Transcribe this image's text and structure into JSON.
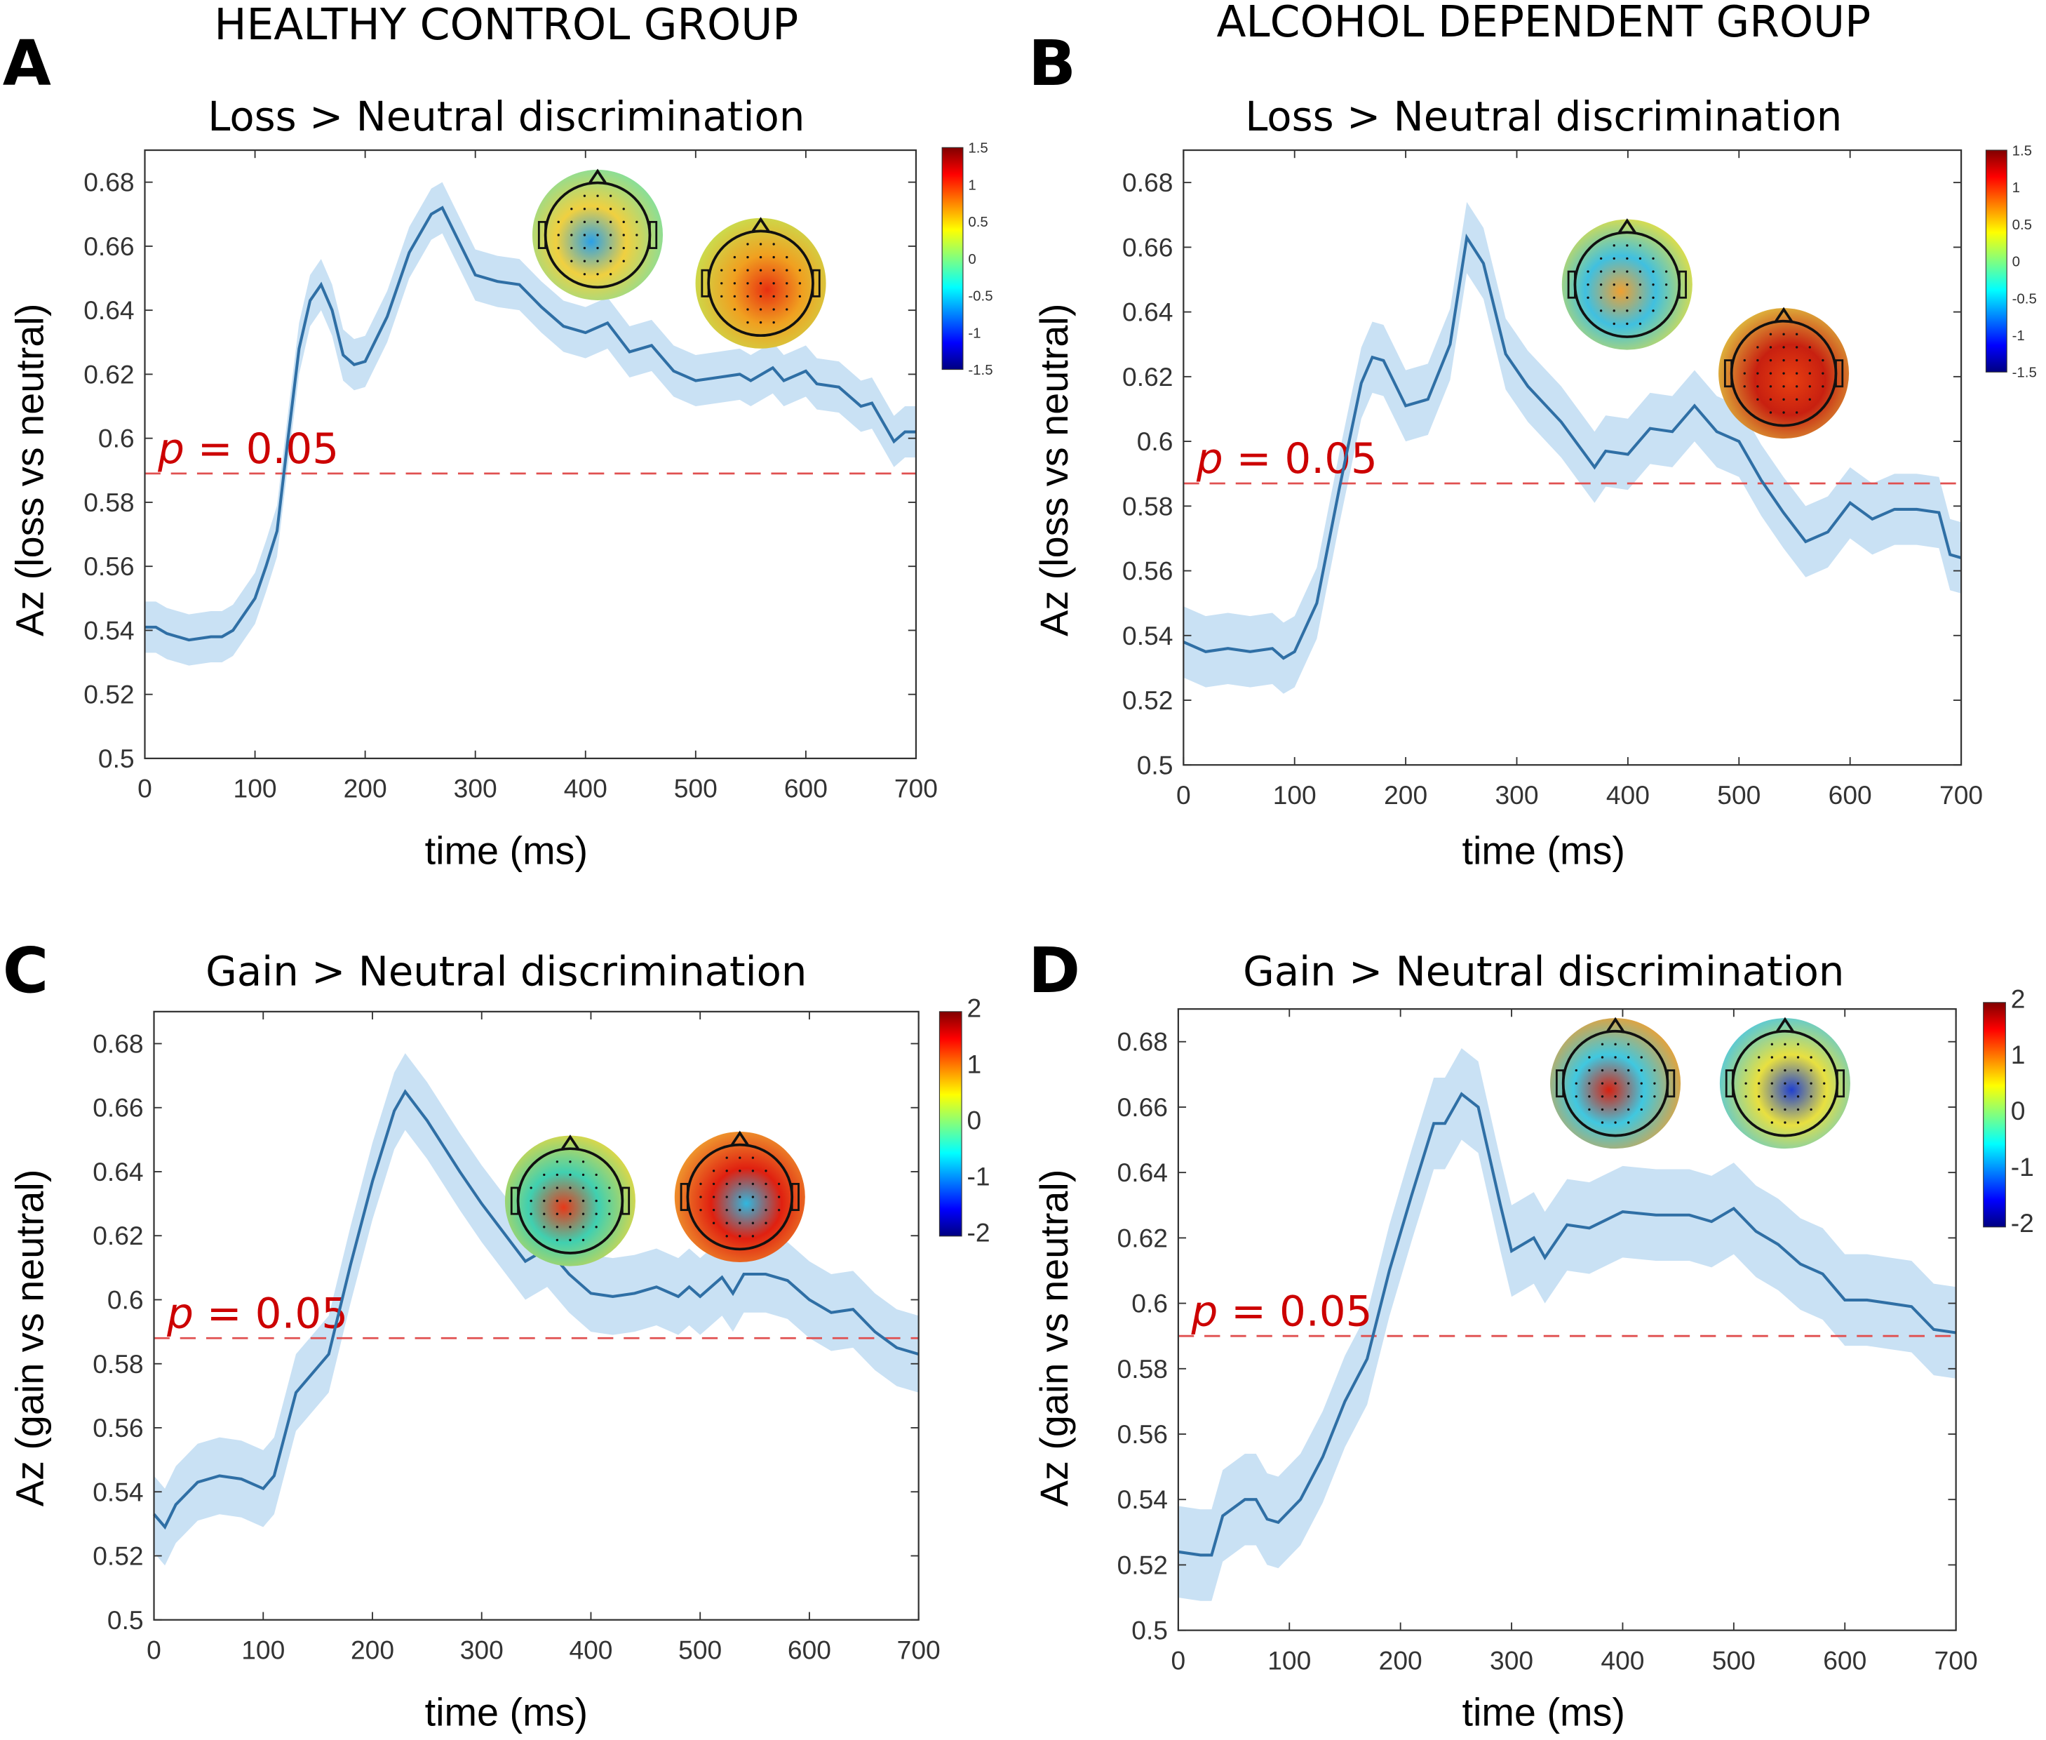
{
  "headers": {
    "left": "HEALTHY CONTROL GROUP",
    "right": "ALCOHOL DEPENDENT GROUP"
  },
  "colors": {
    "line": "#2f6fa5",
    "band": "#c9e1f4",
    "threshold": "#e05050",
    "p_label": "#cc0000"
  },
  "chart_data": [
    {
      "type": "line",
      "panel": "A",
      "title": "Loss > Neutral discrimination",
      "xlabel": "time (ms)",
      "ylabel": "Az (loss vs neutral)",
      "xlim": [
        0,
        700
      ],
      "ylim": [
        0.5,
        0.69
      ],
      "xticks": [
        "0",
        "100",
        "200",
        "300",
        "400",
        "500",
        "600",
        "700"
      ],
      "yticks": [
        "0.5",
        "0.52",
        "0.54",
        "0.56",
        "0.58",
        "0.6",
        "0.62",
        "0.64",
        "0.66",
        "0.68"
      ],
      "threshold": {
        "value": 0.589,
        "label_p": "p",
        "label_rest": " = 0.05"
      },
      "colorbar": {
        "ticks": [
          "1.5",
          "1",
          "0.5",
          "0",
          "-0.5",
          "-1",
          "-1.5"
        ]
      },
      "topomaps": [
        {
          "base": "#7fe0a0",
          "spot": "#2aa0e8",
          "spot2": "#f0d040"
        },
        {
          "base": "#c8e050",
          "spot": "#e83010",
          "spot2": "#f0a020"
        }
      ],
      "x": [
        0,
        10,
        20,
        40,
        60,
        70,
        80,
        100,
        110,
        120,
        130,
        140,
        150,
        160,
        170,
        180,
        190,
        200,
        220,
        240,
        260,
        270,
        280,
        300,
        320,
        340,
        360,
        380,
        400,
        420,
        440,
        460,
        480,
        500,
        520,
        540,
        550,
        570,
        580,
        600,
        610,
        630,
        650,
        660,
        680,
        690,
        700
      ],
      "y": [
        0.541,
        0.541,
        0.539,
        0.537,
        0.538,
        0.538,
        0.54,
        0.55,
        0.56,
        0.571,
        0.6,
        0.628,
        0.643,
        0.648,
        0.64,
        0.626,
        0.623,
        0.624,
        0.638,
        0.658,
        0.67,
        0.672,
        0.665,
        0.651,
        0.649,
        0.648,
        0.641,
        0.635,
        0.633,
        0.636,
        0.627,
        0.629,
        0.621,
        0.618,
        0.619,
        0.62,
        0.618,
        0.622,
        0.618,
        0.621,
        0.617,
        0.616,
        0.61,
        0.611,
        0.599,
        0.602,
        0.602
      ],
      "ci_halfwidth": 0.008
    },
    {
      "type": "line",
      "panel": "B",
      "title": "Loss > Neutral discrimination",
      "xlabel": "time (ms)",
      "ylabel": "Az (loss vs neutral)",
      "xlim": [
        0,
        700
      ],
      "ylim": [
        0.5,
        0.69
      ],
      "xticks": [
        "0",
        "100",
        "200",
        "300",
        "400",
        "500",
        "600",
        "700"
      ],
      "yticks": [
        "0.5",
        "0.52",
        "0.54",
        "0.56",
        "0.58",
        "0.6",
        "0.62",
        "0.64",
        "0.66",
        "0.68"
      ],
      "threshold": {
        "value": 0.587,
        "label_p": "p",
        "label_rest": " = 0.05"
      },
      "colorbar": {
        "ticks": [
          "1.5",
          "1",
          "0.5",
          "0",
          "-0.5",
          "-1",
          "-1.5"
        ]
      },
      "topomaps": [
        {
          "base": "#e8e040",
          "spot": "#f0a030",
          "spot2": "#40c0e0"
        },
        {
          "base": "#e0c040",
          "spot": "#e84010",
          "spot2": "#c82010"
        }
      ],
      "x": [
        0,
        20,
        40,
        60,
        80,
        90,
        100,
        120,
        140,
        160,
        170,
        180,
        200,
        220,
        240,
        255,
        270,
        290,
        310,
        340,
        370,
        380,
        400,
        420,
        440,
        460,
        480,
        500,
        520,
        540,
        560,
        580,
        600,
        620,
        640,
        660,
        680,
        690,
        700
      ],
      "y": [
        0.538,
        0.535,
        0.536,
        0.535,
        0.536,
        0.533,
        0.535,
        0.55,
        0.585,
        0.618,
        0.626,
        0.625,
        0.611,
        0.613,
        0.63,
        0.663,
        0.655,
        0.627,
        0.617,
        0.606,
        0.592,
        0.597,
        0.596,
        0.604,
        0.603,
        0.611,
        0.603,
        0.6,
        0.588,
        0.578,
        0.569,
        0.572,
        0.581,
        0.576,
        0.579,
        0.579,
        0.578,
        0.565,
        0.564
      ],
      "ci_halfwidth": 0.011
    },
    {
      "type": "line",
      "panel": "C",
      "title": "Gain > Neutral discrimination",
      "xlabel": "time (ms)",
      "ylabel": "Az (gain vs neutral)",
      "xlim": [
        0,
        700
      ],
      "ylim": [
        0.5,
        0.69
      ],
      "xticks": [
        "0",
        "100",
        "200",
        "300",
        "400",
        "500",
        "600",
        "700"
      ],
      "yticks": [
        "0.5",
        "0.52",
        "0.54",
        "0.56",
        "0.58",
        "0.6",
        "0.62",
        "0.64",
        "0.66",
        "0.68"
      ],
      "threshold": {
        "value": 0.588,
        "label_p": "p",
        "label_rest": " = 0.05"
      },
      "colorbar": {
        "ticks": [
          "2",
          "1",
          "0",
          "-1",
          "-2"
        ]
      },
      "topomaps": [
        {
          "base": "#e8d840",
          "spot": "#e83818",
          "spot2": "#40d0b0"
        },
        {
          "base": "#f0a030",
          "spot": "#30b8e0",
          "spot2": "#e02010"
        }
      ],
      "x": [
        0,
        10,
        20,
        40,
        60,
        80,
        100,
        110,
        130,
        160,
        180,
        200,
        220,
        230,
        250,
        280,
        300,
        320,
        340,
        360,
        380,
        400,
        420,
        440,
        460,
        480,
        490,
        500,
        520,
        530,
        540,
        560,
        580,
        600,
        620,
        640,
        660,
        680,
        700
      ],
      "y": [
        0.533,
        0.529,
        0.536,
        0.543,
        0.545,
        0.544,
        0.541,
        0.545,
        0.571,
        0.583,
        0.611,
        0.637,
        0.659,
        0.665,
        0.656,
        0.64,
        0.63,
        0.621,
        0.612,
        0.616,
        0.608,
        0.602,
        0.601,
        0.602,
        0.604,
        0.601,
        0.604,
        0.601,
        0.607,
        0.602,
        0.608,
        0.608,
        0.606,
        0.6,
        0.596,
        0.597,
        0.59,
        0.585,
        0.583
      ],
      "ci_halfwidth": 0.012
    },
    {
      "type": "line",
      "panel": "D",
      "title": "Gain > Neutral discrimination",
      "xlabel": "time (ms)",
      "ylabel": "Az (gain vs neutral)",
      "xlim": [
        0,
        700
      ],
      "ylim": [
        0.5,
        0.69
      ],
      "xticks": [
        "0",
        "100",
        "200",
        "300",
        "400",
        "500",
        "600",
        "700"
      ],
      "yticks": [
        "0.5",
        "0.52",
        "0.54",
        "0.56",
        "0.58",
        "0.6",
        "0.62",
        "0.64",
        "0.66",
        "0.68"
      ],
      "threshold": {
        "value": 0.59,
        "label_p": "p",
        "label_rest": " = 0.05"
      },
      "colorbar": {
        "ticks": [
          "2",
          "1",
          "0",
          "-1",
          "-2"
        ]
      },
      "topomaps": [
        {
          "base": "#f0a030",
          "spot": "#d82010",
          "spot2": "#40c8e0"
        },
        {
          "base": "#50c8e0",
          "spot": "#2040d0",
          "spot2": "#e8e040"
        }
      ],
      "x": [
        0,
        20,
        30,
        40,
        60,
        70,
        80,
        90,
        110,
        130,
        150,
        170,
        190,
        210,
        230,
        240,
        255,
        270,
        290,
        300,
        320,
        330,
        350,
        370,
        400,
        430,
        460,
        480,
        500,
        520,
        540,
        560,
        580,
        600,
        620,
        640,
        660,
        680,
        700
      ],
      "y": [
        0.524,
        0.523,
        0.523,
        0.535,
        0.54,
        0.54,
        0.534,
        0.533,
        0.54,
        0.553,
        0.57,
        0.583,
        0.61,
        0.633,
        0.655,
        0.655,
        0.664,
        0.66,
        0.63,
        0.616,
        0.62,
        0.614,
        0.624,
        0.623,
        0.628,
        0.627,
        0.627,
        0.625,
        0.629,
        0.622,
        0.618,
        0.612,
        0.609,
        0.601,
        0.601,
        0.6,
        0.599,
        0.592,
        0.591
      ],
      "ci_halfwidth": 0.014
    }
  ]
}
